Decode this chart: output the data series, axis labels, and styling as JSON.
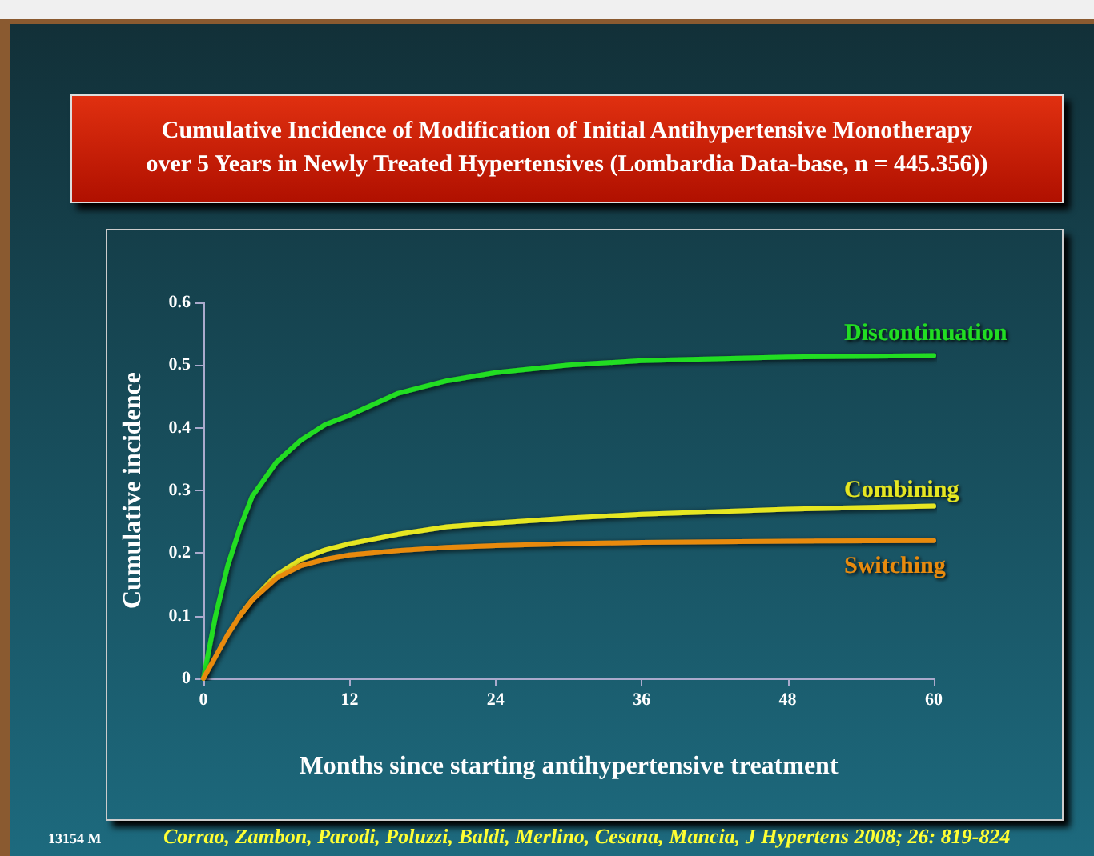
{
  "chart_data": {
    "type": "line",
    "title": "Cumulative Incidence of Modification of Initial Antihypertensive Monotherapy over 5 Years in Newly Treated Hypertensives (Lombardia Data-base, n = 445.356))",
    "xlabel": "Months since starting antihypertensive treatment",
    "ylabel": "Cumulative incidence",
    "annotations": [
      "Corrao, Zambon, Parodi, Poluzzi, Baldi, Merlino, Cesana, Mancia, J Hypertens 2008; 26: 819-824",
      "13154 M"
    ],
    "x": [
      0,
      1,
      2,
      3,
      4,
      6,
      8,
      10,
      12,
      16,
      20,
      24,
      30,
      36,
      48,
      60
    ],
    "series": [
      {
        "name": "Discontinuation",
        "color": "#22dd22",
        "values": [
          0,
          0.1,
          0.18,
          0.24,
          0.29,
          0.345,
          0.38,
          0.405,
          0.42,
          0.455,
          0.475,
          0.488,
          0.5,
          0.507,
          0.513,
          0.515
        ]
      },
      {
        "name": "Combining",
        "color": "#e6e620",
        "values": [
          null,
          null,
          null,
          0.1,
          0.125,
          0.165,
          0.19,
          0.205,
          0.215,
          0.23,
          0.242,
          0.248,
          0.256,
          0.262,
          0.27,
          0.275
        ]
      },
      {
        "name": "Switching",
        "color": "#e88a10",
        "values": [
          0,
          0.035,
          0.07,
          0.1,
          0.125,
          0.16,
          0.18,
          0.19,
          0.197,
          0.204,
          0.209,
          0.212,
          0.215,
          0.217,
          0.219,
          0.22
        ]
      }
    ],
    "xlim": [
      0,
      60
    ],
    "xticks": [
      0,
      12,
      24,
      36,
      48,
      60
    ],
    "ylim": [
      0,
      0.6
    ],
    "yticks": [
      0,
      0.1,
      0.2,
      0.3,
      0.4,
      0.5,
      0.6
    ],
    "grid": false,
    "legend": false,
    "marker": "none",
    "line_style": "solid"
  }
}
